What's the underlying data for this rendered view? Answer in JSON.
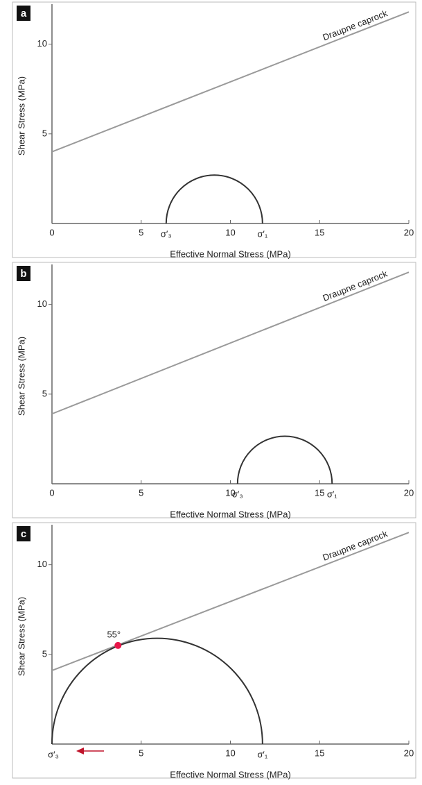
{
  "chart_data": [
    {
      "type": "mohr",
      "panel_label": "a",
      "xlabel": "Effective Normal Stress (MPa)",
      "ylabel": "Shear Stress (MPa)",
      "xlim": [
        0,
        20
      ],
      "ylim": [
        0,
        12
      ],
      "xticks": [
        0,
        5,
        10,
        15,
        20
      ],
      "yticks": [
        5,
        10
      ],
      "envelope": {
        "name": "Draupne caprock",
        "color": "#9a9a9a",
        "x": [
          0,
          20
        ],
        "y": [
          4,
          11.8
        ]
      },
      "circle": {
        "color": "#333333",
        "sigma3": 6.4,
        "sigma1": 11.8,
        "sigma3_label": "σ′₃",
        "sigma1_label": "σ′₁"
      }
    },
    {
      "type": "mohr",
      "panel_label": "b",
      "xlabel": "Effective Normal Stress (MPa)",
      "ylabel": "Shear Stress (MPa)",
      "xlim": [
        0,
        20
      ],
      "ylim": [
        0,
        12
      ],
      "xticks": [
        0,
        5,
        10,
        15,
        20
      ],
      "yticks": [
        5,
        10
      ],
      "envelope": {
        "name": "Draupne caprock",
        "color": "#9a9a9a",
        "x": [
          0,
          20
        ],
        "y": [
          3.9,
          11.8
        ]
      },
      "circle": {
        "color": "#333333",
        "sigma3": 10.4,
        "sigma1": 15.7,
        "sigma3_label": "σ′₃",
        "sigma1_label": "σ′₁"
      }
    },
    {
      "type": "mohr",
      "panel_label": "c",
      "xlabel": "Effective Normal Stress (MPa)",
      "ylabel": "Shear Stress (MPa)",
      "xlim": [
        0,
        20
      ],
      "ylim": [
        0,
        12
      ],
      "xticks": [
        5,
        10,
        15,
        20
      ],
      "yticks": [
        5,
        10
      ],
      "envelope": {
        "name": "Draupne caprock",
        "color": "#9a9a9a",
        "x": [
          0,
          20
        ],
        "y": [
          4.1,
          11.8
        ]
      },
      "circle": {
        "color": "#333333",
        "sigma3": 0,
        "sigma1": 11.8,
        "sigma3_label": "σ′₃",
        "sigma1_label": "σ′₁"
      },
      "point": {
        "x": 3.7,
        "y": 5.5,
        "label": "55°",
        "color": "#e8174a"
      }
    }
  ]
}
